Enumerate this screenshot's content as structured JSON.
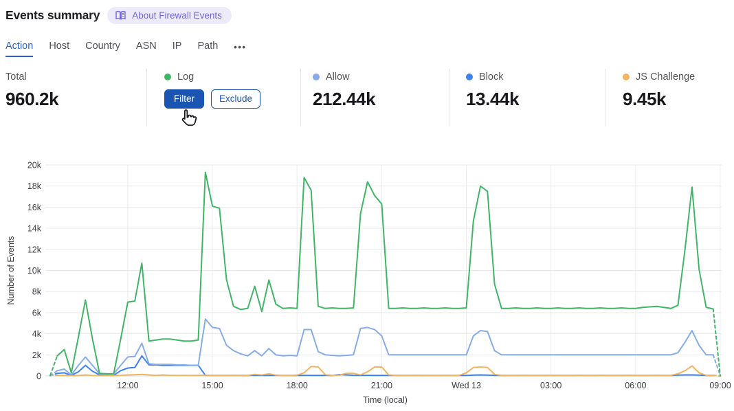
{
  "header": {
    "title": "Events summary",
    "about_badge": "About Firewall Events"
  },
  "tabs": {
    "items": [
      {
        "label": "Action",
        "active": true
      },
      {
        "label": "Host",
        "active": false
      },
      {
        "label": "Country",
        "active": false
      },
      {
        "label": "ASN",
        "active": false
      },
      {
        "label": "IP",
        "active": false
      },
      {
        "label": "Path",
        "active": false
      }
    ],
    "more_label": "•••"
  },
  "stats": {
    "total": {
      "label": "Total",
      "value": "960.2k"
    },
    "series": [
      {
        "label": "Log",
        "color": "#40b566",
        "filter_label": "Filter",
        "exclude_label": "Exclude"
      },
      {
        "label": "Allow",
        "color": "#85ace9",
        "value": "212.44k"
      },
      {
        "label": "Block",
        "color": "#3e82ef",
        "value": "13.44k"
      },
      {
        "label": "JS Challenge",
        "color": "#f2b45f",
        "value": "9.45k"
      }
    ]
  },
  "colors": {
    "accent_blue": "#1b55b2",
    "tab_active_blue": "#2b62c8",
    "badge_purple": "#7165d9",
    "badge_bg": "#edeafa",
    "grid": "#e9e9eb"
  },
  "chart_data": {
    "type": "line",
    "xlabel": "Time (local)",
    "ylabel": "Number of Events",
    "unit": "thousands of events (k)",
    "x_interval_minutes": 15,
    "ylim": [
      0,
      20
    ],
    "y_tick_labels": [
      "0",
      "2k",
      "4k",
      "6k",
      "8k",
      "10k",
      "12k",
      "14k",
      "16k",
      "18k",
      "20k"
    ],
    "x_tick_labels": [
      "12:00",
      "15:00",
      "18:00",
      "21:00",
      "Wed 13",
      "03:00",
      "06:00",
      "09:00"
    ],
    "x_tick_indices": [
      11,
      23,
      35,
      47,
      59,
      71,
      83,
      95
    ],
    "dashed_end_segments": true,
    "series": [
      {
        "name": "Log",
        "color": "#40b566",
        "values": [
          0.05,
          1.9,
          2.5,
          0.3,
          3.7,
          7.2,
          3.5,
          0.25,
          0.2,
          0.2,
          3.5,
          7.0,
          7.1,
          10.7,
          3.3,
          3.4,
          3.5,
          3.5,
          3.4,
          3.3,
          3.3,
          3.4,
          19.3,
          16.1,
          15.9,
          9.1,
          6.6,
          6.3,
          6.4,
          8.5,
          6.1,
          9.1,
          6.8,
          6.4,
          6.45,
          6.4,
          18.8,
          17.6,
          6.6,
          6.4,
          6.45,
          6.4,
          6.4,
          6.45,
          15.4,
          18.4,
          17.1,
          16.3,
          6.4,
          6.4,
          6.45,
          6.4,
          6.4,
          6.45,
          6.4,
          6.4,
          6.45,
          6.4,
          6.4,
          6.45,
          14.7,
          18.0,
          17.5,
          8.7,
          6.4,
          6.4,
          6.45,
          6.4,
          6.4,
          6.45,
          6.4,
          6.4,
          6.45,
          6.4,
          6.4,
          6.45,
          6.4,
          6.4,
          6.45,
          6.4,
          6.4,
          6.45,
          6.4,
          6.4,
          6.5,
          6.55,
          6.6,
          6.5,
          6.4,
          6.7,
          12.0,
          17.9,
          10.1,
          6.5,
          6.35,
          0
        ]
      },
      {
        "name": "Allow",
        "color": "#85ace9",
        "values": [
          0.02,
          0.5,
          0.65,
          0.1,
          1.0,
          1.8,
          1.0,
          0.2,
          0.15,
          0.2,
          1.0,
          1.8,
          1.85,
          3.1,
          1.15,
          1.1,
          1.1,
          1.1,
          1.05,
          1.05,
          1.0,
          1.0,
          5.4,
          4.6,
          4.5,
          2.9,
          2.4,
          2.1,
          1.9,
          2.4,
          1.9,
          2.6,
          2.0,
          1.9,
          1.95,
          1.9,
          4.4,
          4.4,
          2.3,
          2.0,
          1.95,
          1.9,
          1.95,
          2.0,
          4.5,
          4.6,
          4.4,
          3.8,
          2.0,
          2.0,
          2.0,
          2.0,
          2.0,
          2.0,
          2.0,
          2.0,
          2.0,
          2.0,
          2.0,
          2.0,
          3.8,
          4.3,
          4.2,
          2.4,
          2.0,
          2.0,
          2.0,
          2.0,
          2.0,
          2.0,
          2.0,
          2.0,
          2.0,
          2.0,
          2.0,
          2.0,
          2.0,
          2.0,
          2.0,
          2.0,
          2.0,
          2.0,
          2.0,
          2.0,
          2.0,
          2.0,
          2.0,
          2.0,
          2.0,
          2.2,
          3.2,
          4.3,
          2.9,
          2.0,
          2.0,
          0
        ]
      },
      {
        "name": "Block",
        "color": "#3e82ef",
        "values": [
          0.02,
          0.25,
          0.3,
          0.05,
          0.4,
          1.0,
          0.45,
          0.1,
          0.05,
          0.05,
          0.5,
          0.75,
          0.8,
          1.9,
          1.05,
          1.05,
          1.0,
          1.0,
          1.0,
          1.0,
          1.0,
          1.0,
          0.06,
          0.05,
          0.05,
          0.05,
          0.06,
          0.05,
          0.05,
          0.06,
          0.05,
          0.05,
          0.06,
          0.05,
          0.05,
          0.05,
          0.06,
          0.05,
          0.05,
          0.06,
          0.05,
          0.13,
          0.1,
          0.06,
          0.05,
          0.06,
          0.05,
          0.05,
          0.05,
          0.06,
          0.05,
          0.05,
          0.06,
          0.05,
          0.05,
          0.05,
          0.06,
          0.05,
          0.05,
          0.05,
          0.08,
          0.1,
          0.08,
          0.06,
          0.05,
          0.05,
          0.05,
          0.06,
          0.05,
          0.05,
          0.05,
          0.06,
          0.05,
          0.05,
          0.05,
          0.06,
          0.05,
          0.05,
          0.06,
          0.05,
          0.05,
          0.05,
          0.06,
          0.05,
          0.05,
          0.05,
          0.06,
          0.05,
          0.05,
          0.08,
          0.1,
          0.1,
          0.08,
          0.05,
          0.05,
          0
        ]
      },
      {
        "name": "JS Challenge",
        "color": "#f2b45f",
        "values": [
          0.04,
          0.05,
          0.06,
          0.04,
          0.05,
          0.1,
          0.05,
          0.04,
          0.04,
          0.05,
          0.06,
          0.1,
          0.12,
          0.15,
          0.1,
          0.06,
          0.1,
          0.06,
          0.05,
          0.06,
          0.05,
          0.06,
          0.08,
          0.06,
          0.06,
          0.05,
          0.06,
          0.05,
          0.06,
          0.15,
          0.1,
          0.2,
          0.08,
          0.06,
          0.06,
          0.08,
          0.3,
          0.9,
          0.85,
          0.12,
          0.06,
          0.08,
          0.25,
          0.25,
          0.1,
          0.4,
          0.85,
          0.85,
          0.1,
          0.06,
          0.06,
          0.05,
          0.06,
          0.06,
          0.05,
          0.06,
          0.06,
          0.05,
          0.06,
          0.3,
          0.8,
          0.85,
          0.8,
          0.15,
          0.06,
          0.06,
          0.05,
          0.06,
          0.06,
          0.05,
          0.06,
          0.06,
          0.05,
          0.06,
          0.06,
          0.05,
          0.06,
          0.06,
          0.05,
          0.06,
          0.06,
          0.05,
          0.06,
          0.06,
          0.05,
          0.06,
          0.06,
          0.05,
          0.06,
          0.2,
          0.5,
          0.95,
          0.3,
          0.06,
          0.05,
          0
        ]
      }
    ]
  }
}
